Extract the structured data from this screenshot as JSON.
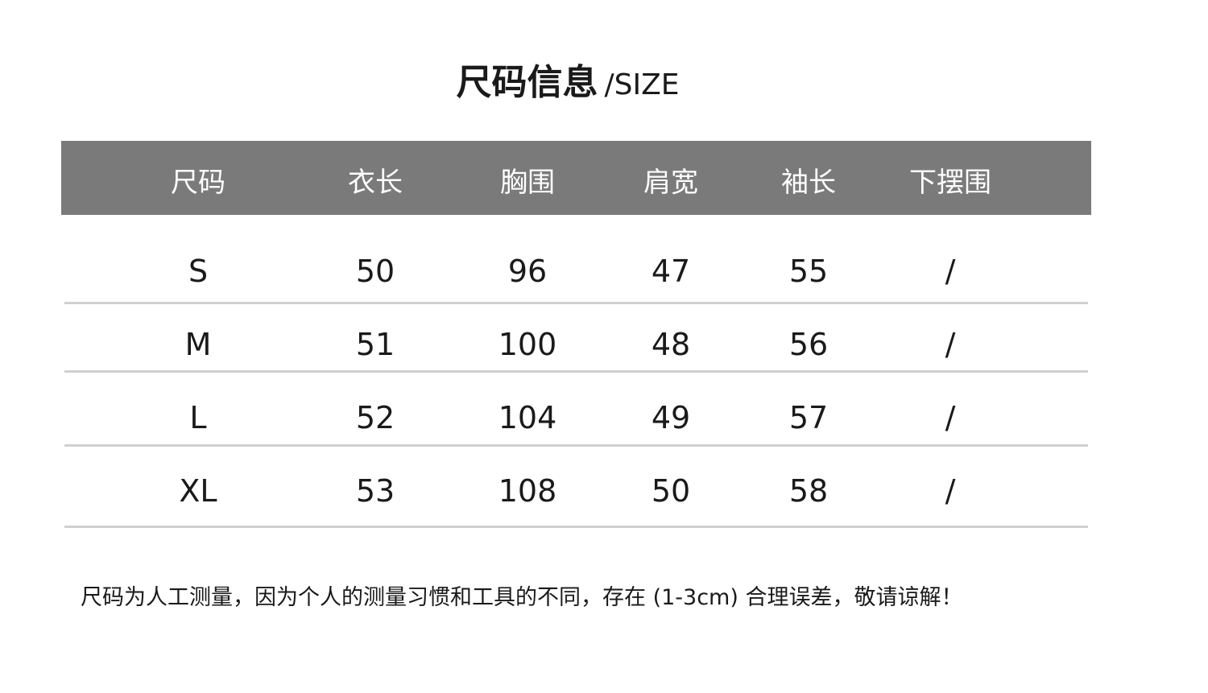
{
  "title": {
    "zh": "尺码信息",
    "en": "/SIZE"
  },
  "table": {
    "headers": [
      "尺码",
      "衣长",
      "胸围",
      "肩宽",
      "袖长",
      "下摆围"
    ],
    "rows": [
      [
        "S",
        "50",
        "96",
        "47",
        "55",
        "/"
      ],
      [
        "M",
        "51",
        "100",
        "48",
        "56",
        "/"
      ],
      [
        "L",
        "52",
        "104",
        "49",
        "57",
        "/"
      ],
      [
        "XL",
        "53",
        "108",
        "50",
        "58",
        "/"
      ]
    ]
  },
  "colors": {
    "header_bg": "#7a7a7a",
    "header_text": "#ffffff",
    "divider": "#d0d0d0"
  },
  "note": "尺码为人工测量，因为个人的测量习惯和工具的不同，存在 (1-3cm) 合理误差，敬请谅解！"
}
